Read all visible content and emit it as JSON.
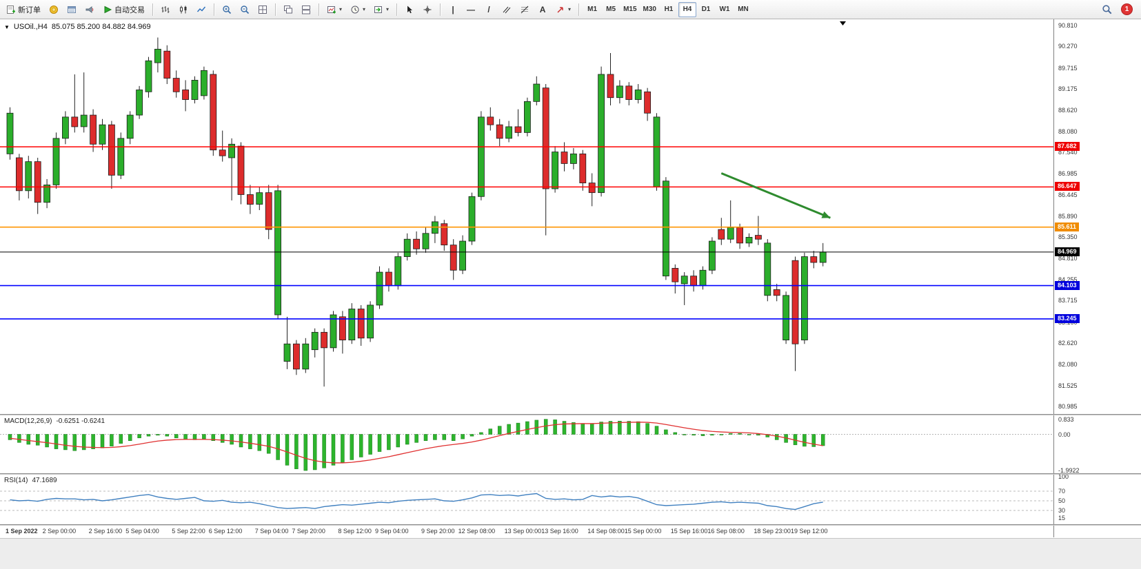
{
  "toolbar": {
    "new_order_label": "新订单",
    "auto_trading_label": "自动交易",
    "text_tool_label": "A",
    "timeframes": [
      "M1",
      "M5",
      "M15",
      "M30",
      "H1",
      "H4",
      "D1",
      "W1",
      "MN"
    ],
    "active_timeframe": "H4",
    "notification_count": "1"
  },
  "icons": {
    "caret_down": "▾",
    "collapse_triangle": "▼",
    "vertical_line": "|",
    "horizontal_line": "—",
    "trendline": "/"
  },
  "chart_header": {
    "symbol_period": "USOil.,H4",
    "ohlc": "85.075 85.200 84.882 84.969"
  },
  "price_axis_ticks": [
    "90.810",
    "90.270",
    "89.715",
    "89.175",
    "88.620",
    "88.080",
    "87.540",
    "86.985",
    "86.445",
    "85.890",
    "85.350",
    "84.810",
    "84.255",
    "83.715",
    "83.160",
    "82.620",
    "82.080",
    "81.525",
    "80.985"
  ],
  "price_tags": [
    {
      "label": "87.682",
      "color": "#EE0000"
    },
    {
      "label": "86.647",
      "color": "#EE0000"
    },
    {
      "label": "85.611",
      "color": "#F08C00"
    },
    {
      "label": "84.969",
      "color": "#000000"
    },
    {
      "label": "84.103",
      "color": "#0000DD"
    },
    {
      "label": "83.245",
      "color": "#0000DD"
    }
  ],
  "hlines": [
    {
      "value": 87.682,
      "color": "#FF0000",
      "width": 1.4
    },
    {
      "value": 86.647,
      "color": "#FF0000",
      "width": 1.4
    },
    {
      "value": 85.611,
      "color": "#FF9500",
      "width": 1.6
    },
    {
      "value": 84.969,
      "color": "#000000",
      "width": 1
    },
    {
      "value": 84.103,
      "color": "#0000FF",
      "width": 1.6
    },
    {
      "value": 83.245,
      "color": "#0000FF",
      "width": 1.6
    }
  ],
  "annotation": {
    "type": "trend-arrow",
    "from_index": 77,
    "from_price": 87.0,
    "to_index": 88.8,
    "to_price": 85.85,
    "color": "#2E8B2E"
  },
  "macd_panel": {
    "label": "MACD(12,26,9)",
    "values": "-0.6251 -0.6241",
    "axis": [
      "0.833",
      "0.00",
      "-1.9922"
    ]
  },
  "rsi_panel": {
    "label": "RSI(14)",
    "value": "47.1689",
    "axis": [
      "100",
      "70",
      "50",
      "30",
      "15"
    ],
    "levels": [
      70,
      50,
      30
    ]
  },
  "time_axis": {
    "labels": [
      "1 Sep 2022",
      "2 Sep 00:00",
      "2 Sep 16:00",
      "5 Sep 04:00",
      "5 Sep 22:00",
      "6 Sep 12:00",
      "7 Sep 04:00",
      "7 Sep 20:00",
      "8 Sep 12:00",
      "9 Sep 04:00",
      "9 Sep 20:00",
      "12 Sep 08:00",
      "13 Sep 00:00",
      "13 Sep 16:00",
      "14 Sep 08:00",
      "15 Sep 00:00",
      "15 Sep 16:00",
      "16 Sep 08:00",
      "18 Sep 23:00",
      "19 Sep 12:00"
    ],
    "indices": [
      0,
      4,
      9,
      13,
      18,
      22,
      27,
      31,
      36,
      40,
      45,
      49,
      54,
      58,
      63,
      67,
      72,
      76,
      81,
      85
    ]
  },
  "chart_data": {
    "type": "candlestick",
    "symbol": "USOil",
    "timeframe": "H4",
    "title": "USOil.,H4 85.075 85.200 84.882 84.969",
    "ohlc_display": {
      "open": 85.075,
      "high": 85.2,
      "low": 84.882,
      "close": 84.969
    },
    "ylim": [
      80.75,
      90.97
    ],
    "candles": [
      [
        87.5,
        88.7,
        87.35,
        88.55
      ],
      [
        87.4,
        87.5,
        86.3,
        86.55
      ],
      [
        86.55,
        87.45,
        86.35,
        87.3
      ],
      [
        87.3,
        87.4,
        85.95,
        86.25
      ],
      [
        86.25,
        86.85,
        86.1,
        86.7
      ],
      [
        86.7,
        88.05,
        86.6,
        87.9
      ],
      [
        87.9,
        88.6,
        87.75,
        88.45
      ],
      [
        88.45,
        89.55,
        88.05,
        88.2
      ],
      [
        88.2,
        89.6,
        88.05,
        88.5
      ],
      [
        88.5,
        88.65,
        87.55,
        87.75
      ],
      [
        87.75,
        88.4,
        87.6,
        88.25
      ],
      [
        88.25,
        88.35,
        86.6,
        86.95
      ],
      [
        86.95,
        88.05,
        86.85,
        87.9
      ],
      [
        87.9,
        88.6,
        87.75,
        88.5
      ],
      [
        88.5,
        89.25,
        88.4,
        89.15
      ],
      [
        89.1,
        90.0,
        88.95,
        89.9
      ],
      [
        89.85,
        90.5,
        89.6,
        90.2
      ],
      [
        90.15,
        90.3,
        89.3,
        89.45
      ],
      [
        89.45,
        89.65,
        88.95,
        89.1
      ],
      [
        89.15,
        89.4,
        88.6,
        88.9
      ],
      [
        88.9,
        89.5,
        88.8,
        89.4
      ],
      [
        89.0,
        89.75,
        88.9,
        89.65
      ],
      [
        89.55,
        89.65,
        87.45,
        87.6
      ],
      [
        87.6,
        88.1,
        87.3,
        87.45
      ],
      [
        87.4,
        87.9,
        86.3,
        87.75
      ],
      [
        87.7,
        87.8,
        86.2,
        86.45
      ],
      [
        86.45,
        86.7,
        85.95,
        86.2
      ],
      [
        86.2,
        86.65,
        86.05,
        86.5
      ],
      [
        86.5,
        86.7,
        85.3,
        85.55
      ],
      [
        83.35,
        86.7,
        83.25,
        86.55
      ],
      [
        82.15,
        83.3,
        81.95,
        82.6
      ],
      [
        82.6,
        82.7,
        81.8,
        81.95
      ],
      [
        81.95,
        82.75,
        81.85,
        82.6
      ],
      [
        82.45,
        83.0,
        82.25,
        82.9
      ],
      [
        82.9,
        83.0,
        81.5,
        82.5
      ],
      [
        82.5,
        83.45,
        82.4,
        83.35
      ],
      [
        83.3,
        83.45,
        82.35,
        82.7
      ],
      [
        82.7,
        83.65,
        82.6,
        83.5
      ],
      [
        83.5,
        83.6,
        82.55,
        82.75
      ],
      [
        82.75,
        83.7,
        82.65,
        83.6
      ],
      [
        83.6,
        84.6,
        83.5,
        84.45
      ],
      [
        84.45,
        84.55,
        83.95,
        84.1
      ],
      [
        84.1,
        84.95,
        84.0,
        84.85
      ],
      [
        84.85,
        85.45,
        84.75,
        85.3
      ],
      [
        85.3,
        85.5,
        84.9,
        85.05
      ],
      [
        85.05,
        85.6,
        84.95,
        85.45
      ],
      [
        85.45,
        85.9,
        85.2,
        85.75
      ],
      [
        85.7,
        85.8,
        85.0,
        85.15
      ],
      [
        85.15,
        85.3,
        84.25,
        84.5
      ],
      [
        84.5,
        85.4,
        84.4,
        85.25
      ],
      [
        85.25,
        86.5,
        85.15,
        86.4
      ],
      [
        86.4,
        88.6,
        86.3,
        88.45
      ],
      [
        88.45,
        88.7,
        88.1,
        88.25
      ],
      [
        88.25,
        88.4,
        87.7,
        87.9
      ],
      [
        87.9,
        88.35,
        87.8,
        88.2
      ],
      [
        88.2,
        88.65,
        87.95,
        88.05
      ],
      [
        88.05,
        88.95,
        87.95,
        88.85
      ],
      [
        88.85,
        89.5,
        88.75,
        89.3
      ],
      [
        89.2,
        89.3,
        85.4,
        86.6
      ],
      [
        86.6,
        87.7,
        86.5,
        87.55
      ],
      [
        87.55,
        87.8,
        87.05,
        87.25
      ],
      [
        87.25,
        87.65,
        87.1,
        87.5
      ],
      [
        87.5,
        87.6,
        86.55,
        86.75
      ],
      [
        86.75,
        87.0,
        86.15,
        86.5
      ],
      [
        86.5,
        89.75,
        86.4,
        89.55
      ],
      [
        89.55,
        90.1,
        88.75,
        88.95
      ],
      [
        88.95,
        89.4,
        88.8,
        89.25
      ],
      [
        89.25,
        89.35,
        88.75,
        88.9
      ],
      [
        88.9,
        89.3,
        88.8,
        89.15
      ],
      [
        89.1,
        89.2,
        88.35,
        88.55
      ],
      [
        86.65,
        88.55,
        86.55,
        88.45
      ],
      [
        84.35,
        86.9,
        84.25,
        86.8
      ],
      [
        84.55,
        84.65,
        83.9,
        84.2
      ],
      [
        84.15,
        84.45,
        83.6,
        84.35
      ],
      [
        84.35,
        84.5,
        83.95,
        84.1
      ],
      [
        84.1,
        84.6,
        84.0,
        84.5
      ],
      [
        84.5,
        85.35,
        84.4,
        85.25
      ],
      [
        85.55,
        85.85,
        85.15,
        85.3
      ],
      [
        85.3,
        86.3,
        85.2,
        85.6
      ],
      [
        85.6,
        85.7,
        85.05,
        85.2
      ],
      [
        85.2,
        85.45,
        85.1,
        85.35
      ],
      [
        85.4,
        85.9,
        85.15,
        85.3
      ],
      [
        83.85,
        85.3,
        83.7,
        85.2
      ],
      [
        84.0,
        84.15,
        83.7,
        83.85
      ],
      [
        82.7,
        83.95,
        82.6,
        83.85
      ],
      [
        84.75,
        84.85,
        81.9,
        82.6
      ],
      [
        82.7,
        84.95,
        82.6,
        84.85
      ],
      [
        84.85,
        85.0,
        84.55,
        84.7
      ],
      [
        84.7,
        85.2,
        84.6,
        84.97
      ]
    ],
    "indicators": {
      "macd": {
        "params": "12,26,9",
        "current": [
          -0.6251,
          -0.6241
        ],
        "range": [
          -1.9922,
          0.833
        ],
        "histogram": [
          -0.3,
          -0.45,
          -0.55,
          -0.6,
          -0.7,
          -0.8,
          -0.85,
          -0.9,
          -0.85,
          -0.8,
          -0.75,
          -0.65,
          -0.5,
          -0.35,
          -0.2,
          -0.1,
          -0.05,
          -0.1,
          -0.2,
          -0.28,
          -0.3,
          -0.25,
          -0.35,
          -0.45,
          -0.55,
          -0.7,
          -0.8,
          -0.9,
          -1.05,
          -1.4,
          -1.7,
          -1.9,
          -1.99,
          -1.95,
          -1.85,
          -1.7,
          -1.55,
          -1.4,
          -1.25,
          -1.1,
          -0.95,
          -0.85,
          -0.7,
          -0.55,
          -0.45,
          -0.35,
          -0.3,
          -0.3,
          -0.35,
          -0.25,
          -0.1,
          0.1,
          0.3,
          0.45,
          0.55,
          0.62,
          0.7,
          0.78,
          0.83,
          0.8,
          0.72,
          0.65,
          0.6,
          0.6,
          0.68,
          0.72,
          0.73,
          0.72,
          0.7,
          0.6,
          0.45,
          0.25,
          0.1,
          0.0,
          -0.05,
          -0.08,
          -0.05,
          0.0,
          0.05,
          0.05,
          0.0,
          -0.05,
          -0.15,
          -0.3,
          -0.45,
          -0.58,
          -0.66,
          -0.68,
          -0.6251
        ],
        "signal": [
          -0.22,
          -0.28,
          -0.34,
          -0.4,
          -0.46,
          -0.53,
          -0.6,
          -0.66,
          -0.7,
          -0.72,
          -0.73,
          -0.72,
          -0.68,
          -0.62,
          -0.54,
          -0.45,
          -0.37,
          -0.32,
          -0.29,
          -0.28,
          -0.28,
          -0.28,
          -0.29,
          -0.32,
          -0.36,
          -0.42,
          -0.49,
          -0.57,
          -0.66,
          -0.8,
          -0.97,
          -1.15,
          -1.32,
          -1.45,
          -1.53,
          -1.57,
          -1.57,
          -1.54,
          -1.48,
          -1.41,
          -1.32,
          -1.23,
          -1.12,
          -1.01,
          -0.9,
          -0.79,
          -0.7,
          -0.62,
          -0.56,
          -0.5,
          -0.42,
          -0.32,
          -0.2,
          -0.07,
          0.05,
          0.16,
          0.27,
          0.37,
          0.46,
          0.53,
          0.57,
          0.58,
          0.59,
          0.59,
          0.61,
          0.63,
          0.65,
          0.66,
          0.67,
          0.66,
          0.62,
          0.54,
          0.45,
          0.36,
          0.28,
          0.21,
          0.16,
          0.13,
          0.11,
          0.1,
          0.08,
          0.04,
          -0.02,
          -0.1,
          -0.2,
          -0.32,
          -0.44,
          -0.54,
          -0.6241
        ]
      },
      "rsi": {
        "params": "14",
        "current": 47.1689,
        "range": [
          0,
          100
        ],
        "values": [
          52,
          50,
          51,
          49,
          53,
          55,
          54,
          54,
          52,
          53,
          50,
          52,
          55,
          58,
          61,
          63,
          58,
          55,
          53,
          55,
          57,
          50,
          49,
          51,
          47,
          46,
          47,
          44,
          40,
          36,
          34,
          35,
          36,
          34,
          38,
          40,
          42,
          41,
          43,
          45,
          47,
          46,
          49,
          51,
          52,
          53,
          54,
          50,
          49,
          52,
          56,
          62,
          63,
          61,
          62,
          60,
          63,
          65,
          55,
          53,
          54,
          52,
          53,
          61,
          58,
          60,
          58,
          59,
          56,
          49,
          42,
          40,
          41,
          42,
          43,
          45,
          47,
          48,
          46,
          47,
          46,
          45,
          40,
          38,
          34,
          32,
          38,
          44,
          47.17
        ]
      }
    }
  },
  "colors": {
    "bull": "#2BAE2B",
    "bear": "#DD2C2C",
    "wick": "#222222",
    "macd_bar": "#2DB52D",
    "macd_signal": "#E03030",
    "rsi_line": "#4080C0"
  }
}
